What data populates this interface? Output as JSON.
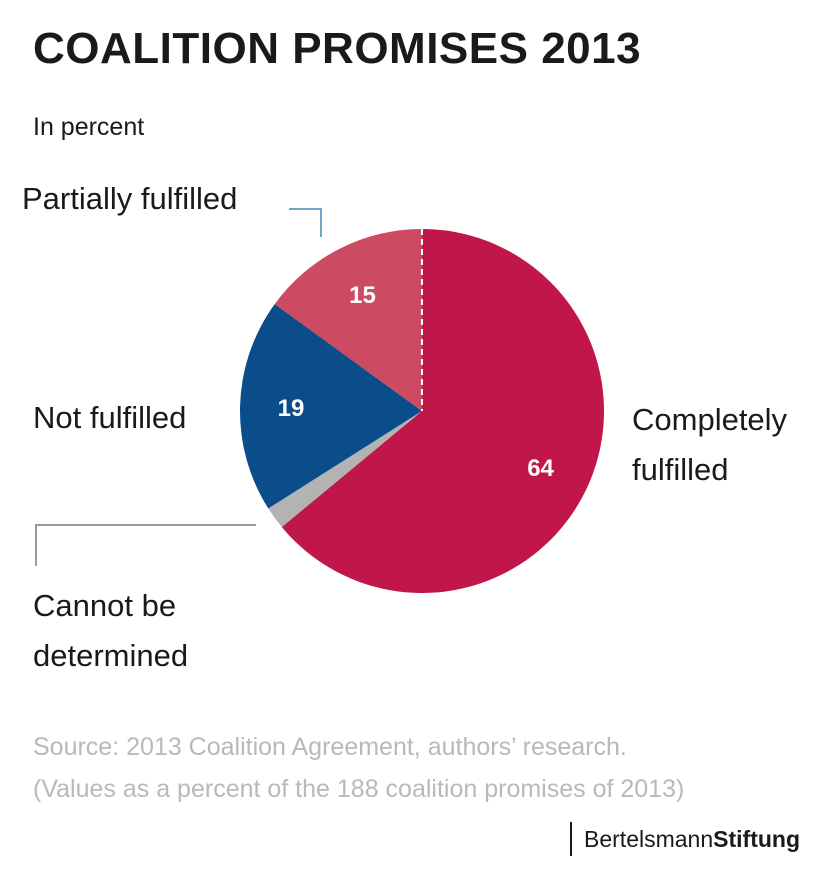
{
  "header": {
    "title": "COALITION PROMISES 2013",
    "subtitle": "In percent"
  },
  "chart_data": {
    "type": "pie",
    "title": "COALITION PROMISES 2013",
    "subtitle": "In percent",
    "slices": [
      {
        "label": "Completely fulfilled",
        "value": 64,
        "value_label": "64",
        "color": "#c0164a"
      },
      {
        "label": "Cannot be determined",
        "value": 2,
        "value_label": "",
        "color": "#b3b3b3"
      },
      {
        "label": "Not fulfilled",
        "value": 19,
        "value_label": "19",
        "color": "#0b4c8b"
      },
      {
        "label": "Partially fulfilled",
        "value": 15,
        "value_label": "15",
        "color": "#cc4b63"
      }
    ],
    "start_angle_deg": 0,
    "direction": "clockwise"
  },
  "labels": {
    "partially": "Partially fulfilled",
    "not": "Not fulfilled",
    "completely_line1": "Completely",
    "completely_line2": "fulfilled",
    "cannot_line1": "Cannot be",
    "cannot_line2": "determined"
  },
  "footer": {
    "source": "Source: 2013 Coalition Agreement, authors’ research.",
    "note": "(Values as a percent of the 188 coalition promises of 2013)"
  },
  "logo": {
    "part1": "Bertelsmann",
    "part2": "Stiftung"
  },
  "colors": {
    "leader_partial": "#6fa8c8",
    "leader_cannot": "#9a9a9a"
  }
}
